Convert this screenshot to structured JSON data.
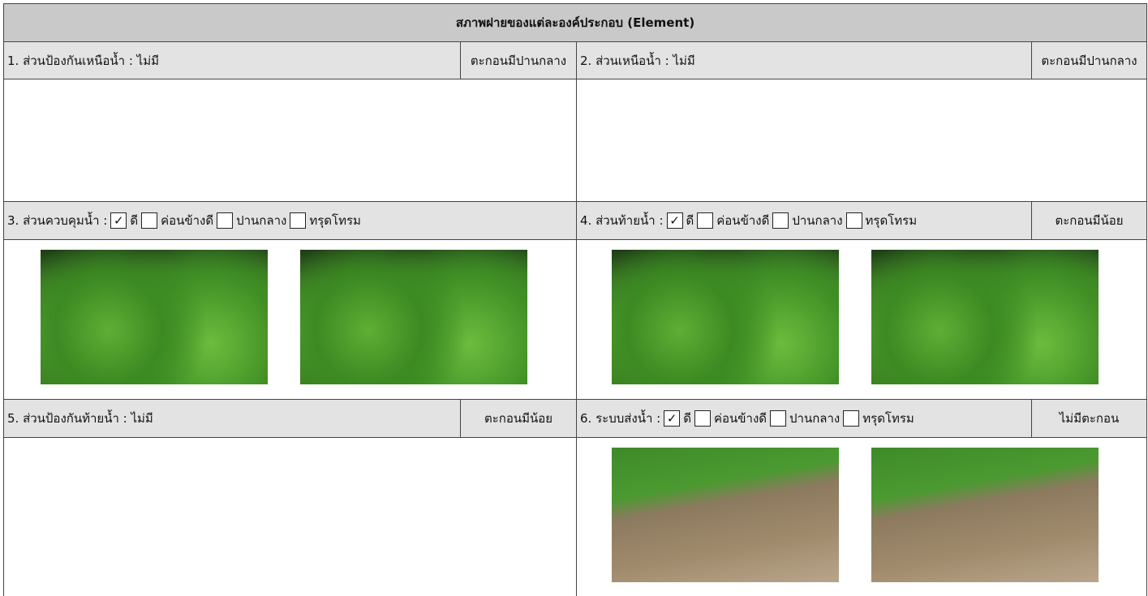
{
  "title": "สภาพฝายของแต่ละองค์ประกอบ (Element)",
  "sections": [
    {
      "label": "1. ส่วนป้องกันเหนือน้ำ : ไม่มี",
      "status": "ตะกอนมีปานกลาง"
    },
    {
      "label": "2. ส่วนเหนือน้ำ : ไม่มี",
      "status": "ตะกอนมีปานกลาง"
    },
    {
      "label": "3. ส่วนควบคุมน้ำ :",
      "options": [
        {
          "label": "ดี",
          "checked": true
        },
        {
          "label": "ค่อนข้างดี",
          "checked": false
        },
        {
          "label": "ปานกลาง",
          "checked": false
        },
        {
          "label": "ทรุดโทรม",
          "checked": false
        }
      ]
    },
    {
      "label": "4. ส่วนท้ายน้ำ :",
      "options": [
        {
          "label": "ดี",
          "checked": true
        },
        {
          "label": "ค่อนข้างดี",
          "checked": false
        },
        {
          "label": "ปานกลาง",
          "checked": false
        },
        {
          "label": "ทรุดโทรม",
          "checked": false
        }
      ],
      "status": "ตะกอนมีน้อย"
    },
    {
      "label": "5. ส่วนป้องกันท้ายน้ำ : ไม่มี",
      "status": "ตะกอนมีน้อย"
    },
    {
      "label": "6. ระบบส่งน้ำ :",
      "options": [
        {
          "label": "ดี",
          "checked": true
        },
        {
          "label": "ค่อนข้างดี",
          "checked": false
        },
        {
          "label": "ปานกลาง",
          "checked": false
        },
        {
          "label": "ทรุดโทรม",
          "checked": false
        }
      ],
      "status": "ไม่มีตะกอน"
    }
  ]
}
